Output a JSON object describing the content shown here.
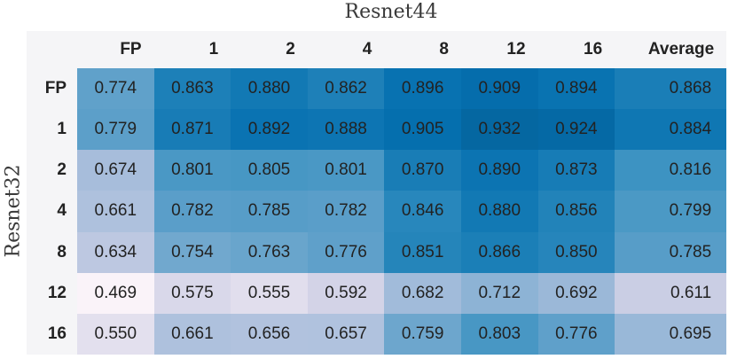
{
  "chart_data": {
    "type": "heatmap",
    "x_axis_title": "Resnet44",
    "y_axis_title": "Resnet32",
    "columns": [
      "FP",
      "1",
      "2",
      "4",
      "8",
      "12",
      "16",
      "Average"
    ],
    "rows": [
      "FP",
      "1",
      "2",
      "4",
      "8",
      "12",
      "16"
    ],
    "values": [
      [
        0.774,
        0.863,
        0.88,
        0.862,
        0.896,
        0.909,
        0.894,
        0.868
      ],
      [
        0.779,
        0.871,
        0.892,
        0.888,
        0.905,
        0.932,
        0.924,
        0.884
      ],
      [
        0.674,
        0.801,
        0.805,
        0.801,
        0.87,
        0.89,
        0.873,
        0.816
      ],
      [
        0.661,
        0.782,
        0.785,
        0.782,
        0.846,
        0.88,
        0.856,
        0.799
      ],
      [
        0.634,
        0.754,
        0.763,
        0.776,
        0.851,
        0.866,
        0.85,
        0.785
      ],
      [
        0.469,
        0.575,
        0.555,
        0.592,
        0.682,
        0.712,
        0.692,
        0.611
      ],
      [
        0.55,
        0.661,
        0.656,
        0.657,
        0.759,
        0.803,
        0.776,
        0.695
      ]
    ],
    "decimals": 3,
    "grid": false,
    "legend": "none",
    "colormap": {
      "name": "PuBu",
      "vmin": 0.45,
      "vmax": 1.05,
      "stops": [
        [
          0.0,
          "#fff7fb"
        ],
        [
          0.125,
          "#ece7f2"
        ],
        [
          0.25,
          "#d0d1e6"
        ],
        [
          0.375,
          "#a6bddb"
        ],
        [
          0.5,
          "#74a9cf"
        ],
        [
          0.625,
          "#3690c0"
        ],
        [
          0.75,
          "#0570b0"
        ],
        [
          0.875,
          "#045a8d"
        ],
        [
          1.0,
          "#023858"
        ]
      ]
    },
    "colors": {
      "header_bg": "#f5f5f7",
      "cell_text": "#222222",
      "title_text": "#3a3a3a",
      "background": "#ffffff"
    }
  }
}
